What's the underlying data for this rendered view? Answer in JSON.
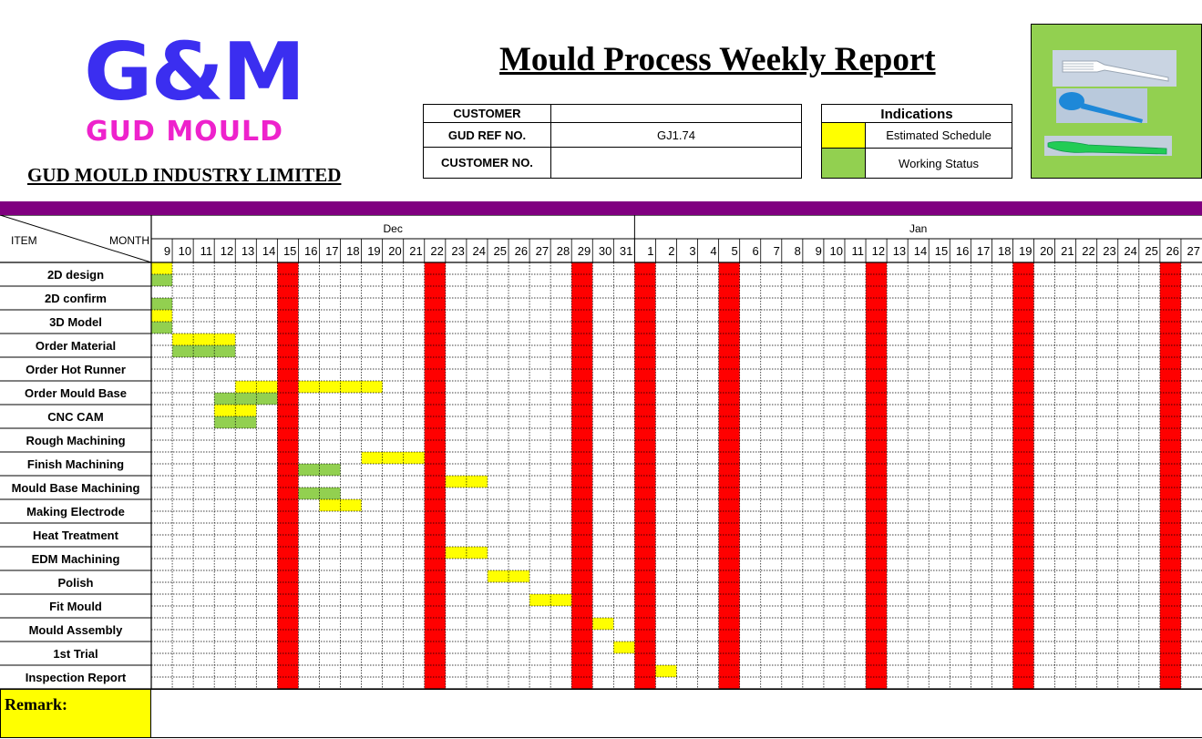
{
  "header": {
    "logo_main": "G&M",
    "logo_sub": "GUD MOULD",
    "company_name": "GUD MOULD INDUSTRY LIMITED",
    "title": "Mould Process Weekly Report"
  },
  "info": {
    "rows": [
      {
        "label": "CUSTOMER",
        "value": ""
      },
      {
        "label": "GUD REF NO.",
        "value": "GJ1.74"
      },
      {
        "label": "CUSTOMER NO.",
        "value": ""
      }
    ]
  },
  "legend": {
    "title": "Indications",
    "items": [
      {
        "label": "Estimated Schedule",
        "color": "#ffff00"
      },
      {
        "label": "Working Status",
        "color": "#92d050"
      }
    ]
  },
  "colors": {
    "purple_bar": "#800080",
    "holiday": "#ff0000",
    "estimated": "#ffff00",
    "working": "#92d050",
    "product_bg": "#92d050",
    "remark_bg": "#ffff00",
    "logo_main": "#3b2ef0",
    "logo_sub": "#ee22cc"
  },
  "gantt": {
    "corner_left": "ITEM",
    "corner_right": "MONTH",
    "months": [
      {
        "label": "Dec",
        "span": 23
      },
      {
        "label": "Jan",
        "span": 27
      }
    ],
    "days": [
      "9",
      "10",
      "11",
      "12",
      "13",
      "14",
      "15",
      "16",
      "17",
      "18",
      "19",
      "20",
      "21",
      "22",
      "23",
      "24",
      "25",
      "26",
      "27",
      "28",
      "29",
      "30",
      "31",
      "1",
      "2",
      "3",
      "4",
      "5",
      "6",
      "7",
      "8",
      "9",
      "10",
      "11",
      "12",
      "13",
      "14",
      "15",
      "16",
      "17",
      "18",
      "19",
      "20",
      "21",
      "22",
      "23",
      "24",
      "25",
      "26",
      "27"
    ],
    "holiday_days": [
      "Dec 15",
      "Dec 22",
      "Dec 29",
      "Jan 1",
      "Jan 5",
      "Jan 12",
      "Jan 19",
      "Jan 26"
    ],
    "holiday_columns": [
      6,
      13,
      20,
      23,
      27,
      34,
      41,
      48
    ],
    "rows": [
      {
        "label": "2D design",
        "estimated": [
          [
            0,
            0
          ]
        ],
        "working": [
          [
            0,
            0
          ]
        ]
      },
      {
        "label": "2D confirm",
        "estimated": [],
        "working": [
          [
            0,
            0
          ]
        ]
      },
      {
        "label": "3D Model",
        "estimated": [
          [
            0,
            0
          ]
        ],
        "working": [
          [
            0,
            0
          ]
        ]
      },
      {
        "label": "Order Material",
        "estimated": [
          [
            1,
            3
          ]
        ],
        "working": [
          [
            1,
            3
          ]
        ]
      },
      {
        "label": "Order Hot Runner",
        "estimated": [],
        "working": []
      },
      {
        "label": "Order Mould Base",
        "estimated": [
          [
            4,
            5
          ],
          [
            7,
            10
          ]
        ],
        "working": [
          [
            3,
            5
          ]
        ]
      },
      {
        "label": "CNC CAM",
        "estimated": [
          [
            3,
            4
          ]
        ],
        "working": [
          [
            3,
            4
          ]
        ]
      },
      {
        "label": "Rough Machining",
        "estimated": [],
        "working": []
      },
      {
        "label": "Finish Machining",
        "estimated": [
          [
            10,
            12
          ]
        ],
        "working": [
          [
            7,
            8
          ]
        ]
      },
      {
        "label": "Mould Base Machining",
        "estimated": [
          [
            14,
            15
          ]
        ],
        "working": [
          [
            7,
            8
          ]
        ]
      },
      {
        "label": "Making Electrode",
        "estimated": [
          [
            8,
            9
          ]
        ],
        "working": []
      },
      {
        "label": "Heat Treatment",
        "estimated": [],
        "working": []
      },
      {
        "label": "EDM Machining",
        "estimated": [
          [
            14,
            15
          ]
        ],
        "working": []
      },
      {
        "label": "Polish",
        "estimated": [
          [
            16,
            17
          ]
        ],
        "working": []
      },
      {
        "label": "Fit Mould",
        "estimated": [
          [
            18,
            19
          ]
        ],
        "working": []
      },
      {
        "label": "Mould Assembly",
        "estimated": [
          [
            21,
            21
          ]
        ],
        "working": []
      },
      {
        "label": "1st Trial",
        "estimated": [
          [
            22,
            22
          ]
        ],
        "working": []
      },
      {
        "label": "Inspection Report",
        "estimated": [
          [
            24,
            24
          ]
        ],
        "working": []
      }
    ]
  },
  "remark": {
    "label": "Remark:",
    "value": ""
  }
}
